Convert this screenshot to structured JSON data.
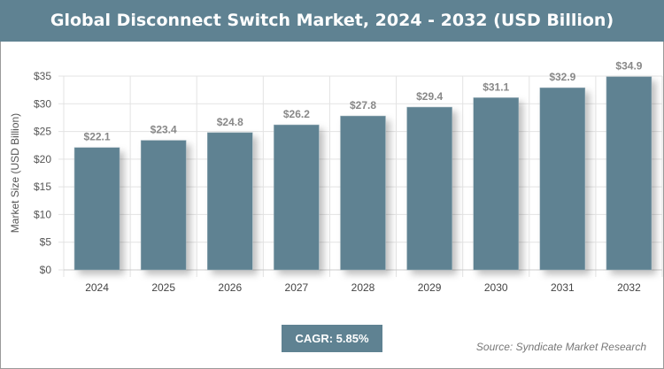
{
  "chart_data": {
    "type": "bar",
    "title": "Global Disconnect Switch Market, 2024 - 2032 (USD Billion)",
    "xlabel": "",
    "ylabel": "Market Size (USD Billion)",
    "categories": [
      "2024",
      "2025",
      "2026",
      "2027",
      "2028",
      "2029",
      "2030",
      "2031",
      "2032"
    ],
    "values": [
      22.1,
      23.4,
      24.8,
      26.2,
      27.8,
      29.4,
      31.1,
      32.9,
      34.9
    ],
    "data_labels": [
      "$22.1",
      "$23.4",
      "$24.8",
      "$26.2",
      "$27.8",
      "$29.4",
      "$31.1",
      "$32.9",
      "$34.9"
    ],
    "ylim": [
      0,
      35
    ],
    "yticks": [
      0,
      5,
      10,
      15,
      20,
      25,
      30,
      35
    ],
    "ytick_labels": [
      "$0",
      "$5",
      "$10",
      "$15",
      "$20",
      "$25",
      "$30",
      "$35"
    ],
    "grid": true,
    "bar_color": "#5f8292"
  },
  "footer": {
    "cagr": "CAGR: 5.85%",
    "source": "Source: Syndicate Market Research"
  }
}
